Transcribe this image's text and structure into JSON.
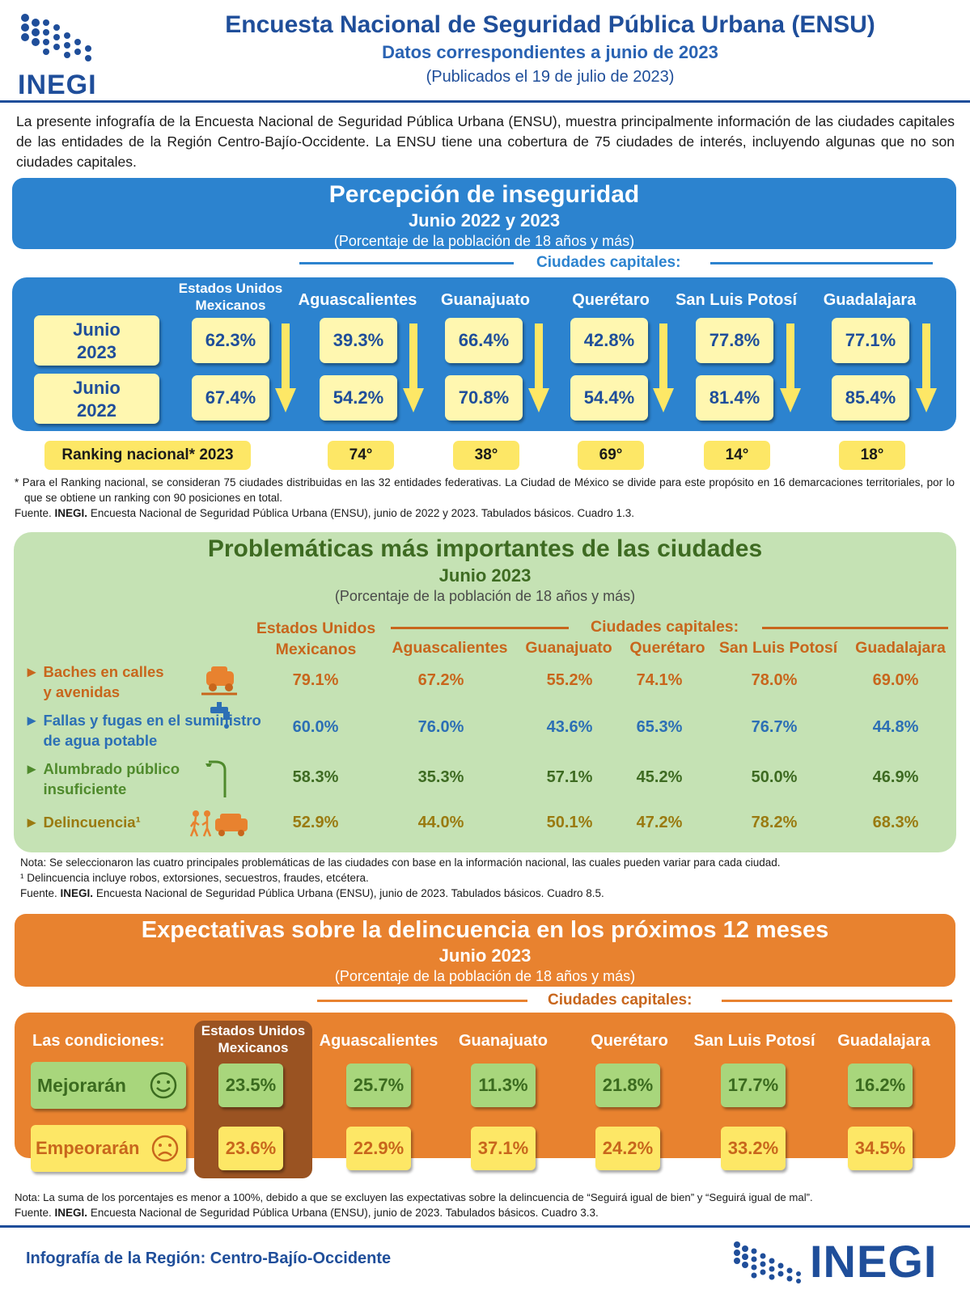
{
  "header": {
    "logo_text": "INEGI",
    "title": "Encuesta Nacional de Seguridad Pública Urbana (ENSU)",
    "subtitle": "Datos correspondientes a junio de 2023",
    "published": "(Publicados el 19 de julio de 2023)"
  },
  "intro": "La presente infografía de la Encuesta Nacional de Seguridad Pública Urbana (ENSU), muestra principalmente información de las ciudades capitales de las entidades de la Región Centro-Bajío-Occidente. La ENSU tiene una cobertura de 75 ciudades de interés, incluyendo algunas que no son ciudades capitales.",
  "perception": {
    "title": "Percepción de inseguridad",
    "period": "Junio 2022 y 2023",
    "unit": "(Porcentaje de la población de 18 años y más)",
    "capitals_label": "Ciudades capitales:",
    "national_label": "Estados Unidos Mexicanos",
    "cities": [
      "Aguascalientes",
      "Guanajuato",
      "Querétaro",
      "San Luis Potosí",
      "Guadalajara"
    ],
    "row_2023_label": "Junio 2023",
    "row_2022_label": "Junio 2022",
    "values_2023": [
      "62.3%",
      "39.3%",
      "66.4%",
      "42.8%",
      "77.8%",
      "77.1%"
    ],
    "values_2022": [
      "67.4%",
      "54.2%",
      "70.8%",
      "54.4%",
      "81.4%",
      "85.4%"
    ],
    "ranking_label": "Ranking nacional* 2023",
    "ranking": [
      "74°",
      "38°",
      "69°",
      "14°",
      "18°"
    ],
    "note": "* Para el Ranking nacional, se consideran 75 ciudades distribuidas en las 32 entidades federativas. La Ciudad de México se divide para este propósito en 16 demarcaciones territoriales, por lo que se obtiene un ranking con 90 posiciones en total.",
    "source_prefix": "Fuente.",
    "source_org": "INEGI.",
    "source": "Encuesta Nacional de Seguridad Pública Urbana (ENSU), junio de 2022 y 2023. Tabulados básicos. Cuadro 1.3."
  },
  "problems": {
    "title": "Problemáticas más importantes de las ciudades",
    "period": "Junio 2023",
    "unit": "(Porcentaje de la población de 18 años y más)",
    "national_label": "Estados Unidos Mexicanos",
    "capitals_label": "Ciudades capitales:",
    "cities": [
      "Aguascalientes",
      "Guanajuato",
      "Querétaro",
      "San Luis Potosí",
      "Guadalajara"
    ],
    "rows": [
      {
        "label": "Baches en calles y avenidas",
        "color": "#c8661c",
        "values": [
          "79.1%",
          "67.2%",
          "55.2%",
          "74.1%",
          "78.0%",
          "69.0%"
        ]
      },
      {
        "label": "Fallas y fugas en el suministro de agua potable",
        "color": "#2c6fb5",
        "values": [
          "60.0%",
          "76.0%",
          "43.6%",
          "65.3%",
          "76.7%",
          "44.8%"
        ]
      },
      {
        "label": "Alumbrado público insuficiente",
        "color": "#3e6b22",
        "values": [
          "58.3%",
          "35.3%",
          "57.1%",
          "45.2%",
          "50.0%",
          "46.9%"
        ]
      },
      {
        "label": "Delincuencia¹",
        "color": "#9a7a10",
        "values": [
          "52.9%",
          "44.0%",
          "50.1%",
          "47.2%",
          "78.2%",
          "68.3%"
        ]
      }
    ],
    "note": "Nota: Se seleccionaron las cuatro principales problemáticas de las ciudades con base en la información nacional, las cuales pueden variar para cada ciudad.",
    "footnote": "¹ Delincuencia incluye robos, extorsiones, secuestros, fraudes, etcétera.",
    "source_prefix": "Fuente.",
    "source_org": "INEGI.",
    "source": "Encuesta Nacional de Seguridad Pública Urbana (ENSU), junio de 2023. Tabulados básicos. Cuadro 8.5."
  },
  "expectations": {
    "title": "Expectativas sobre la delincuencia en los próximos 12 meses",
    "period": "Junio 2023",
    "unit": "(Porcentaje de la población de 18 años y más)",
    "capitals_label": "Ciudades capitales:",
    "conditions_label": "Las condiciones:",
    "national_label": "Estados Unidos Mexicanos",
    "cities": [
      "Aguascalientes",
      "Guanajuato",
      "Querétaro",
      "San Luis Potosí",
      "Guadalajara"
    ],
    "better_label": "Mejorarán",
    "worse_label": "Empeorarán",
    "better_values": [
      "23.5%",
      "25.7%",
      "11.3%",
      "21.8%",
      "17.7%",
      "16.2%"
    ],
    "worse_values": [
      "23.6%",
      "22.9%",
      "37.1%",
      "24.2%",
      "33.2%",
      "34.5%"
    ],
    "note": "Nota: La suma de los porcentajes es menor a 100%, debido a que se excluyen las expectativas sobre la delincuencia de “Seguirá igual de bien” y “Seguirá igual de mal”.",
    "source_prefix": "Fuente.",
    "source_org": "INEGI.",
    "source": "Encuesta Nacional de Seguridad Pública Urbana (ENSU), junio de 2023. Tabulados básicos. Cuadro 3.3."
  },
  "footer": {
    "region": "Infografía de la Región: Centro-Bajío-Occidente",
    "logo_text": "INEGI"
  }
}
